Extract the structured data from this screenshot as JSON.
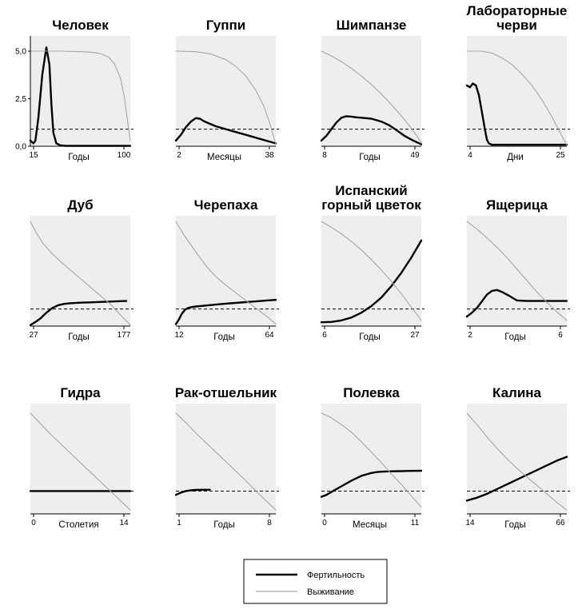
{
  "colors": {
    "background": "#ffffff",
    "panel": "#eeeeee",
    "fertility": "#000000",
    "survival": "#a6a6a6",
    "threshold": "#000000"
  },
  "legend": {
    "fertility": "Фертильность",
    "survival": "Выживание",
    "placement": "bottom-center"
  },
  "chart_data": [
    {
      "type": "line",
      "title": [
        "Человек"
      ],
      "xlabel": "Годы",
      "xticks": [
        "15",
        "100"
      ],
      "yticks": [
        "5,0",
        "2,5",
        "0,0"
      ],
      "ylim": [
        0,
        5.8
      ],
      "threshold": 0.9,
      "series": [
        {
          "name": "Фертильность",
          "x": [
            0,
            0.03,
            0.05,
            0.08,
            0.12,
            0.16,
            0.19,
            0.21,
            0.23,
            0.26,
            0.3,
            0.35,
            0.45,
            0.6,
            0.8,
            1.0
          ],
          "y": [
            0.3,
            0.15,
            0.3,
            1.5,
            3.8,
            5.2,
            4.3,
            2.2,
            0.7,
            0.15,
            0.05,
            0.02,
            0.02,
            0.02,
            0.02,
            0.02
          ]
        },
        {
          "name": "Выживание",
          "x": [
            0,
            0.3,
            0.5,
            0.6,
            0.7,
            0.78,
            0.84,
            0.9,
            0.94,
            0.97,
            1.0
          ],
          "y": [
            5.0,
            5.0,
            4.97,
            4.95,
            4.88,
            4.7,
            4.35,
            3.6,
            2.6,
            1.4,
            0.3
          ]
        }
      ]
    },
    {
      "type": "line",
      "title": [
        "Гуппи"
      ],
      "xlabel": "Месяцы",
      "xticks": [
        "2",
        "38"
      ],
      "ylim": [
        0,
        5.8
      ],
      "threshold": 0.9,
      "series": [
        {
          "name": "Фертильность",
          "x": [
            0,
            0.05,
            0.1,
            0.15,
            0.2,
            0.24,
            0.28,
            0.33,
            0.4,
            0.5,
            0.6,
            0.7,
            0.8,
            0.9,
            1.0
          ],
          "y": [
            0.3,
            0.6,
            1.0,
            1.3,
            1.48,
            1.45,
            1.32,
            1.2,
            1.05,
            0.9,
            0.75,
            0.6,
            0.45,
            0.3,
            0.15
          ]
        },
        {
          "name": "Выживание",
          "x": [
            0,
            0.2,
            0.35,
            0.5,
            0.6,
            0.7,
            0.8,
            0.88,
            0.94,
            1.0
          ],
          "y": [
            5.0,
            4.97,
            4.85,
            4.55,
            4.2,
            3.7,
            2.95,
            2.1,
            1.2,
            0.1
          ]
        }
      ]
    },
    {
      "type": "line",
      "title": [
        "Шимпанзе"
      ],
      "xlabel": "Годы",
      "xticks": [
        "8",
        "49"
      ],
      "ylim": [
        0,
        5.8
      ],
      "threshold": 0.9,
      "series": [
        {
          "name": "Фертильность",
          "x": [
            0,
            0.05,
            0.1,
            0.15,
            0.2,
            0.25,
            0.3,
            0.35,
            0.4,
            0.5,
            0.6,
            0.68,
            0.75,
            0.83,
            0.92,
            1.0
          ],
          "y": [
            0.3,
            0.55,
            0.9,
            1.25,
            1.5,
            1.58,
            1.56,
            1.52,
            1.5,
            1.45,
            1.3,
            1.1,
            0.85,
            0.55,
            0.3,
            0.1
          ]
        },
        {
          "name": "Выживание",
          "x": [
            0,
            0.1,
            0.2,
            0.3,
            0.4,
            0.5,
            0.6,
            0.7,
            0.8,
            0.9,
            1.0
          ],
          "y": [
            5.0,
            4.75,
            4.45,
            4.1,
            3.7,
            3.25,
            2.75,
            2.2,
            1.6,
            0.95,
            0.2
          ]
        }
      ]
    },
    {
      "type": "line",
      "title": [
        "Лабораторные",
        "черви"
      ],
      "xlabel": "Дни",
      "xticks": [
        "4",
        "25"
      ],
      "ylim": [
        0,
        5.8
      ],
      "threshold": 0.9,
      "series": [
        {
          "name": "Фертильность",
          "x": [
            0,
            0.03,
            0.06,
            0.09,
            0.12,
            0.15,
            0.18,
            0.2,
            0.22,
            0.25,
            0.3,
            0.4,
            0.6,
            0.8,
            1.0
          ],
          "y": [
            3.2,
            3.1,
            3.3,
            3.2,
            2.7,
            1.8,
            0.9,
            0.35,
            0.15,
            0.08,
            0.08,
            0.08,
            0.08,
            0.08,
            0.08
          ]
        },
        {
          "name": "Выживание",
          "x": [
            0,
            0.15,
            0.25,
            0.35,
            0.45,
            0.55,
            0.65,
            0.75,
            0.85,
            0.93,
            1.0
          ],
          "y": [
            5.0,
            5.0,
            4.9,
            4.65,
            4.3,
            3.8,
            3.2,
            2.45,
            1.55,
            0.75,
            0.05
          ]
        }
      ]
    },
    {
      "type": "line",
      "title": [
        "Дуб"
      ],
      "xlabel": "Годы",
      "xticks": [
        "27",
        "177"
      ],
      "ylim": [
        0,
        5.8
      ],
      "threshold": 0.9,
      "series": [
        {
          "name": "Фертильность",
          "x": [
            0,
            0.06,
            0.1,
            0.16,
            0.22,
            0.28,
            0.34,
            0.4,
            0.5,
            0.6,
            0.7,
            0.8,
            0.9,
            0.96
          ],
          "y": [
            0.05,
            0.25,
            0.4,
            0.7,
            0.95,
            1.1,
            1.17,
            1.2,
            1.23,
            1.25,
            1.27,
            1.29,
            1.31,
            1.32
          ]
        },
        {
          "name": "Выживание",
          "x": [
            0,
            0.06,
            0.12,
            0.2,
            0.3,
            0.4,
            0.5,
            0.6,
            0.7,
            0.8,
            0.9,
            1.0
          ],
          "y": [
            5.5,
            4.9,
            4.4,
            3.9,
            3.4,
            2.95,
            2.5,
            2.05,
            1.6,
            1.15,
            0.6,
            0.05
          ]
        }
      ]
    },
    {
      "type": "line",
      "title": [
        "Черепаха"
      ],
      "xlabel": "Годы",
      "xticks": [
        "12",
        "64"
      ],
      "ylim": [
        0,
        5.8
      ],
      "threshold": 0.9,
      "series": [
        {
          "name": "Фертильность",
          "x": [
            0,
            0.03,
            0.06,
            0.09,
            0.12,
            0.16,
            0.2,
            0.3,
            0.4,
            0.5,
            0.6,
            0.7,
            0.8,
            0.9,
            1.0
          ],
          "y": [
            0.1,
            0.35,
            0.65,
            0.85,
            0.95,
            1.0,
            1.03,
            1.08,
            1.13,
            1.18,
            1.22,
            1.26,
            1.3,
            1.34,
            1.38
          ]
        },
        {
          "name": "Выживание",
          "x": [
            0,
            0.08,
            0.16,
            0.24,
            0.32,
            0.4,
            0.5,
            0.6,
            0.7,
            0.8,
            0.9,
            1.0
          ],
          "y": [
            5.5,
            4.8,
            4.2,
            3.6,
            3.05,
            2.6,
            2.15,
            1.75,
            1.35,
            0.95,
            0.55,
            0.1
          ]
        }
      ]
    },
    {
      "type": "line",
      "title": [
        "Испанский",
        "горный цветок"
      ],
      "xlabel": "Годы",
      "xticks": [
        "6",
        "27"
      ],
      "ylim": [
        0,
        5.8
      ],
      "threshold": 0.9,
      "series": [
        {
          "name": "Фертильность",
          "x": [
            0,
            0.1,
            0.2,
            0.3,
            0.4,
            0.5,
            0.6,
            0.7,
            0.8,
            0.9,
            1.0
          ],
          "y": [
            0.2,
            0.22,
            0.3,
            0.45,
            0.7,
            1.05,
            1.5,
            2.1,
            2.8,
            3.6,
            4.5
          ]
        },
        {
          "name": "Выживание",
          "x": [
            0,
            0.1,
            0.2,
            0.3,
            0.4,
            0.5,
            0.6,
            0.7,
            0.8,
            0.9,
            1.0
          ],
          "y": [
            5.5,
            5.2,
            4.85,
            4.45,
            4.0,
            3.5,
            2.95,
            2.35,
            1.7,
            1.0,
            0.3
          ]
        }
      ]
    },
    {
      "type": "line",
      "title": [
        "Ящерица"
      ],
      "xlabel": "Годы",
      "xticks": [
        "2",
        "6"
      ],
      "ylim": [
        0,
        5.8
      ],
      "threshold": 0.9,
      "series": [
        {
          "name": "Фертильность",
          "x": [
            0,
            0.05,
            0.1,
            0.15,
            0.2,
            0.25,
            0.3,
            0.35,
            0.42,
            0.5,
            0.6,
            0.7,
            0.8,
            0.9,
            1.0
          ],
          "y": [
            0.5,
            0.7,
            0.95,
            1.3,
            1.65,
            1.85,
            1.9,
            1.8,
            1.6,
            1.35,
            1.32,
            1.32,
            1.32,
            1.32,
            1.32
          ]
        },
        {
          "name": "Выживание",
          "x": [
            0,
            0.1,
            0.2,
            0.3,
            0.4,
            0.5,
            0.6,
            0.7,
            0.8,
            0.9,
            1.0
          ],
          "y": [
            5.5,
            5.1,
            4.65,
            4.15,
            3.6,
            3.0,
            2.4,
            1.8,
            1.25,
            0.75,
            0.3
          ]
        }
      ]
    },
    {
      "type": "line",
      "title": [
        "Гидра"
      ],
      "xlabel": "Столетия",
      "xticks": [
        "0",
        "14"
      ],
      "ylim": [
        0,
        5.8
      ],
      "threshold": 1.2,
      "series": [
        {
          "name": "Фертильность",
          "x": [
            0,
            1.0
          ],
          "y": [
            1.2,
            1.2
          ]
        },
        {
          "name": "Выживание",
          "x": [
            0,
            0.1,
            0.2,
            0.3,
            0.4,
            0.5,
            0.6,
            0.7,
            0.8,
            0.9,
            1.0
          ],
          "y": [
            5.3,
            4.75,
            4.2,
            3.7,
            3.2,
            2.7,
            2.2,
            1.7,
            1.2,
            0.7,
            0.2
          ]
        }
      ]
    },
    {
      "type": "line",
      "title": [
        "Рак-отшельник"
      ],
      "xlabel": "Годы",
      "xticks": [
        "1",
        "8"
      ],
      "ylim": [
        0,
        5.8
      ],
      "threshold": 1.2,
      "series": [
        {
          "name": "Фертильность",
          "x": [
            0,
            0.05,
            0.1,
            0.15,
            0.2,
            0.25,
            0.3,
            0.34
          ],
          "y": [
            1.0,
            1.12,
            1.2,
            1.24,
            1.26,
            1.27,
            1.27,
            1.27
          ]
        },
        {
          "name": "Выживание",
          "x": [
            0,
            0.1,
            0.2,
            0.3,
            0.4,
            0.5,
            0.6,
            0.7,
            0.8,
            0.9,
            1.0
          ],
          "y": [
            5.3,
            4.8,
            4.25,
            3.75,
            3.25,
            2.75,
            2.25,
            1.75,
            1.2,
            0.7,
            0.2
          ]
        }
      ]
    },
    {
      "type": "line",
      "title": [
        "Полевка"
      ],
      "xlabel": "Месяцы",
      "xticks": [
        "0",
        "11"
      ],
      "ylim": [
        0,
        5.8
      ],
      "threshold": 1.2,
      "series": [
        {
          "name": "Фертильность",
          "x": [
            0,
            0.05,
            0.1,
            0.2,
            0.3,
            0.4,
            0.5,
            0.55,
            0.6,
            0.7,
            0.8,
            0.9,
            1.0
          ],
          "y": [
            0.9,
            1.0,
            1.15,
            1.45,
            1.75,
            2.0,
            2.15,
            2.2,
            2.22,
            2.24,
            2.25,
            2.26,
            2.27
          ]
        },
        {
          "name": "Выживание",
          "x": [
            0,
            0.1,
            0.2,
            0.3,
            0.4,
            0.5,
            0.6,
            0.7,
            0.8,
            0.9,
            1.0
          ],
          "y": [
            5.3,
            5.05,
            4.7,
            4.3,
            3.8,
            3.25,
            2.7,
            2.1,
            1.55,
            0.95,
            0.35
          ]
        }
      ]
    },
    {
      "type": "line",
      "title": [
        "Калина"
      ],
      "xlabel": "Годы",
      "xticks": [
        "14",
        "66"
      ],
      "ylim": [
        0,
        5.8
      ],
      "threshold": 1.2,
      "series": [
        {
          "name": "Фертильность",
          "x": [
            0,
            0.1,
            0.2,
            0.3,
            0.4,
            0.5,
            0.6,
            0.7,
            0.8,
            0.9,
            1.0
          ],
          "y": [
            0.7,
            0.85,
            1.05,
            1.3,
            1.55,
            1.8,
            2.05,
            2.3,
            2.55,
            2.8,
            3.0
          ]
        },
        {
          "name": "Выживание",
          "x": [
            0,
            0.1,
            0.2,
            0.3,
            0.4,
            0.5,
            0.6,
            0.7,
            0.8,
            0.9,
            1.0
          ],
          "y": [
            5.3,
            4.7,
            4.05,
            3.45,
            2.9,
            2.4,
            1.95,
            1.5,
            1.05,
            0.6,
            0.2
          ]
        }
      ]
    }
  ]
}
